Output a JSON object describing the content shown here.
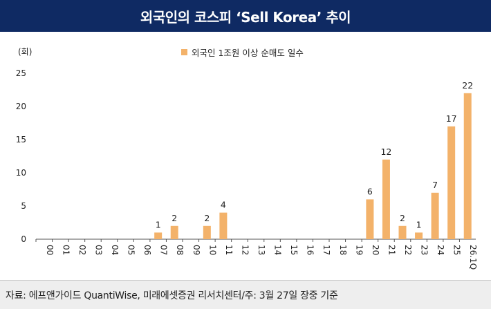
{
  "header": {
    "title": "외국인의 코스피 ‘Sell Korea’ 추이"
  },
  "source": {
    "text": "자료: 에프앤가이드 QuantiWise, 미래에셋증권 리서치센터/주: 3월 27일 장중 기준"
  },
  "colors": {
    "header_bg": "#0f2a63",
    "bar": "#f3b26a"
  },
  "chart_data": {
    "type": "bar",
    "title": "외국인의 코스피 ‘Sell Korea’ 추이",
    "unit": "(회)",
    "xlabel": "",
    "ylabel": "",
    "ylim": [
      0,
      25
    ],
    "yticks": [
      0,
      5,
      10,
      15,
      20,
      25
    ],
    "grid": false,
    "legend_position": "top-center",
    "categories": [
      "00",
      "01",
      "02",
      "03",
      "04",
      "05",
      "06",
      "07",
      "08",
      "09",
      "10",
      "11",
      "12",
      "13",
      "14",
      "15",
      "16",
      "17",
      "18",
      "19",
      "20",
      "21",
      "22",
      "23",
      "24",
      "25",
      "26.1Q"
    ],
    "series": [
      {
        "name": "외국인 1조원 이상 순매도 일수",
        "values": [
          0,
          0,
          0,
          0,
          0,
          0,
          0,
          1,
          2,
          0,
          2,
          4,
          0,
          0,
          0,
          0,
          0,
          0,
          0,
          0,
          6,
          12,
          2,
          1,
          7,
          17,
          22
        ]
      }
    ]
  }
}
